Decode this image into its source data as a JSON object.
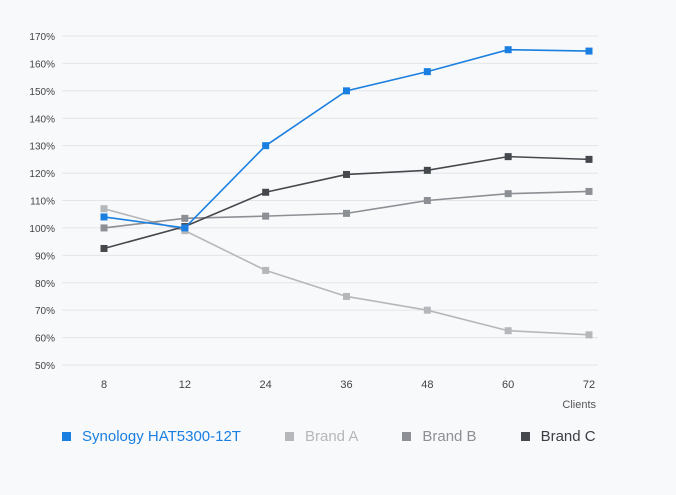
{
  "chart_data": {
    "type": "line",
    "title": "",
    "xlabel": "Clients",
    "ylabel": "",
    "categories": [
      "8",
      "12",
      "24",
      "36",
      "48",
      "60",
      "72"
    ],
    "ylim": [
      50,
      170
    ],
    "yticks": [
      50,
      60,
      70,
      80,
      90,
      100,
      110,
      120,
      130,
      140,
      150,
      160,
      170
    ],
    "y_tick_suffix": "%",
    "grid": "horizontal",
    "legend_position": "bottom-left",
    "series": [
      {
        "name": "Synology HAT5300-12T",
        "color": "#1a7fe0",
        "values": [
          104,
          100,
          130,
          150,
          157,
          165,
          164.5
        ]
      },
      {
        "name": "Brand A",
        "color": "#b5b7ba",
        "values": [
          107,
          99,
          84.5,
          75,
          70,
          62.5,
          61
        ]
      },
      {
        "name": "Brand B",
        "color": "#8c8f94",
        "values": [
          100,
          103.5,
          104.3,
          105.3,
          110,
          112.5,
          113.3
        ]
      },
      {
        "name": "Brand C",
        "color": "#45484d",
        "values": [
          92.5,
          100.5,
          113,
          119.5,
          121,
          126,
          125
        ]
      }
    ]
  }
}
